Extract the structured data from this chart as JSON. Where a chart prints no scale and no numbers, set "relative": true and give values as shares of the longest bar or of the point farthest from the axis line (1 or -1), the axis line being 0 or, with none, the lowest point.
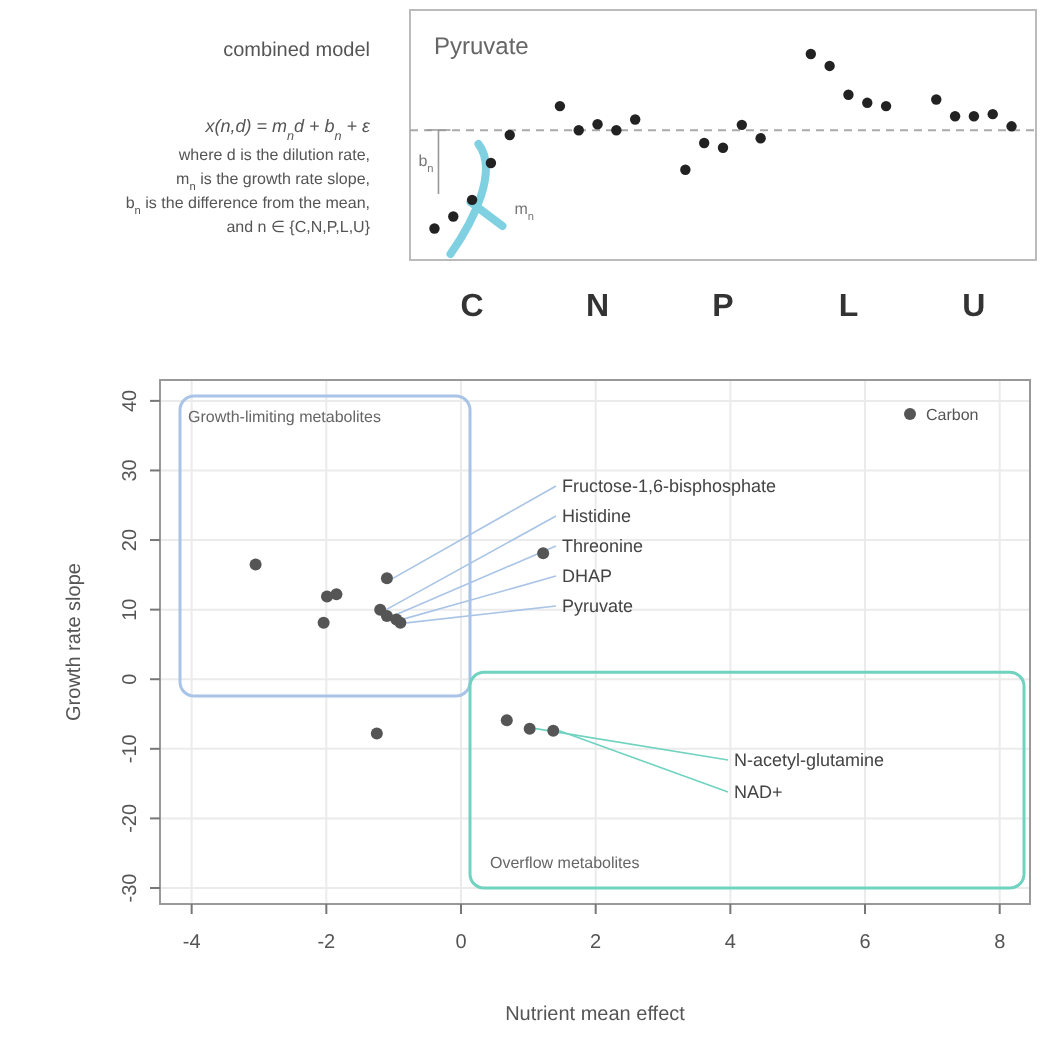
{
  "chart_data": [
    {
      "type": "scatter",
      "title": "Pyruvate",
      "categories": [
        "C",
        "N",
        "P",
        "L",
        "U"
      ],
      "relative": true,
      "marker": "circle",
      "series": [
        {
          "color": "#222222",
          "values": [
            0.153,
            0.747,
            0.438,
            1,
            0.779
          ]
        },
        {
          "color": "#222222",
          "values": [
            0.211,
            0.63,
            0.568,
            0.942,
            0.698
          ]
        },
        {
          "color": "#222222",
          "values": [
            0.292,
            0.659,
            0.545,
            0.802,
            0.698
          ]
        },
        {
          "color": "#222222",
          "values": [
            0.471,
            0.63,
            0.656,
            0.763,
            0.708
          ]
        },
        {
          "color": "#222222",
          "values": [
            0.607,
            0.682,
            0.591,
            0.747,
            0.649
          ]
        }
      ],
      "ref_lines": [
        {
          "axis": "y",
          "value": 0.63,
          "line_style": "dashed",
          "color": "#aaaaaa"
        }
      ],
      "annotations": [
        "combined model",
        "x(n,d) = m$_{n}$d + b$_{n}$ + ε",
        "where d is the dilution rate,",
        "m$_{n}$ is the growth rate slope,",
        "b$_{n}$ is the difference from the mean,",
        "and n ∈ {C,N,P,L,U}",
        "b$_{n}$",
        "m$_{n}$"
      ]
    },
    {
      "type": "scatter",
      "xlabel": "Nutrient mean effect",
      "ylabel": "Growth rate slope",
      "xlim": [
        -4.47,
        8.45
      ],
      "ylim": [
        -32.3,
        43
      ],
      "xticks": [
        -4,
        -2,
        0,
        2,
        4,
        6,
        8
      ],
      "yticks": [
        -30,
        -20,
        -10,
        0,
        10,
        20,
        30,
        40
      ],
      "grid": true,
      "legend": "top right",
      "marker": "circle",
      "series": [
        {
          "name": "Carbon",
          "color": "#555555",
          "x": [
            -3.05,
            -2.04,
            -1.99,
            -1.85,
            -1.1,
            -1.2,
            -1.1,
            -0.96,
            -0.9,
            1.22,
            -1.25,
            0.68,
            1.02,
            1.37
          ],
          "values": [
            16.5,
            8.1,
            11.9,
            12.2,
            14.5,
            10,
            9.1,
            8.6,
            8.1,
            18.1,
            -7.8,
            -5.9,
            -7.1,
            -7.4
          ]
        }
      ],
      "annotations": [
        "Growth-limiting metabolites",
        "Overflow metabolites",
        {
          "text": "Fructose-1,6-bisphosphate",
          "x": -1.1,
          "y": 14.5
        },
        {
          "text": "Histidine",
          "x": -1.2,
          "y": 10
        },
        {
          "text": "Threonine",
          "x": -1.1,
          "y": 9.1
        },
        {
          "text": "DHAP",
          "x": -0.96,
          "y": 8.6
        },
        {
          "text": "Pyruvate",
          "x": -0.9,
          "y": 8.1
        },
        {
          "text": "N-acetyl-glutamine",
          "x": 1.02,
          "y": -7.1
        },
        {
          "text": "NAD+",
          "x": 1.37,
          "y": -7.4
        }
      ]
    }
  ]
}
